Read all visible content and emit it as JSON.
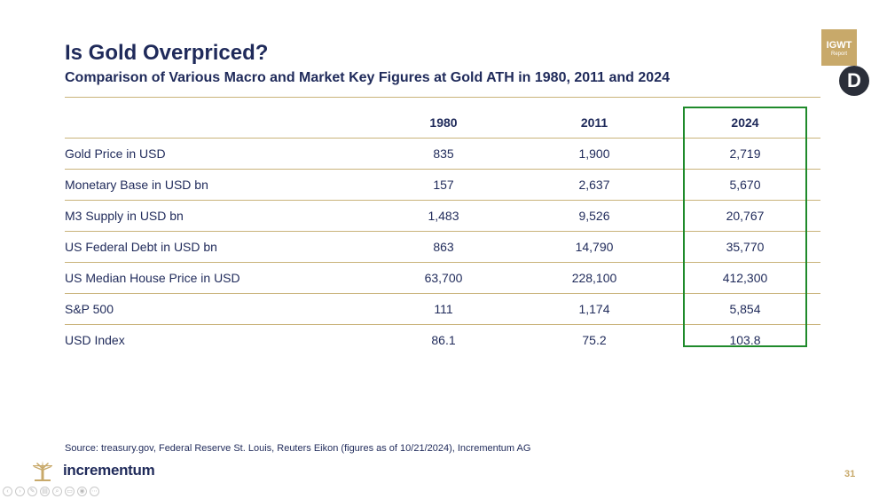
{
  "header": {
    "title": "Is Gold Overpriced?",
    "subtitle": "Comparison of Various Macro and Market Key Figures at Gold ATH in 1980, 2011 and 2024"
  },
  "badge": {
    "line1": "IGWT",
    "line2": "Report"
  },
  "corner_letter": "D",
  "table": {
    "columns": [
      "",
      "1980",
      "2011",
      "2024"
    ],
    "rows": [
      {
        "label": "Gold Price in USD",
        "values": [
          "835",
          "1,900",
          "2,719"
        ]
      },
      {
        "label": "Monetary Base in USD bn",
        "values": [
          "157",
          "2,637",
          "5,670"
        ]
      },
      {
        "label": "M3 Supply in USD bn",
        "values": [
          "1,483",
          "9,526",
          "20,767"
        ]
      },
      {
        "label": "US Federal Debt in USD bn",
        "values": [
          "863",
          "14,790",
          "35,770"
        ]
      },
      {
        "label": "US Median House Price in USD",
        "values": [
          "63,700",
          "228,100",
          "412,300"
        ]
      },
      {
        "label": "S&P 500",
        "values": [
          "111",
          "1,174",
          "5,854"
        ]
      },
      {
        "label": "USD Index",
        "values": [
          "86.1",
          "75.2",
          "103.8"
        ]
      }
    ],
    "highlighted_column": "2024"
  },
  "source": "Source: treasury.gov, Federal Reserve St. Louis, Reuters Eikon (figures as of 10/21/2024), Incrementum AG",
  "footer": {
    "brand": "incrementum",
    "page_number": "31"
  },
  "colors": {
    "navy": "#1f2a5a",
    "gold": "#c8a96a",
    "rule": "#c9b37a",
    "highlight": "#1f8a2b"
  }
}
